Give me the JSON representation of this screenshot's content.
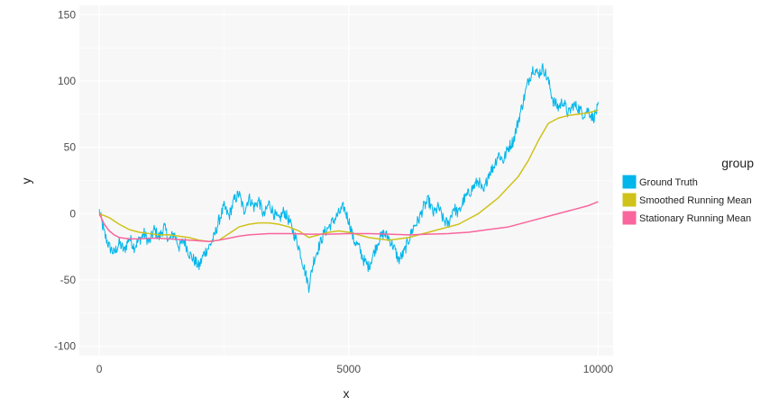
{
  "chart_data": {
    "type": "line",
    "title": "",
    "xlabel": "x",
    "ylabel": "y",
    "xlim": [
      -400,
      10300
    ],
    "ylim": [
      -107,
      157
    ],
    "x_ticks": [
      0,
      5000,
      10000
    ],
    "y_ticks": [
      -100,
      -50,
      0,
      50,
      100,
      150
    ],
    "x_tick_labels": [
      "0",
      "5000",
      "10000"
    ],
    "y_tick_labels": [
      "-100",
      "-50",
      "0",
      "50",
      "100",
      "150"
    ],
    "grid": true,
    "legend": {
      "title": "group",
      "position": "right"
    },
    "series": [
      {
        "name": "Ground Truth",
        "color": "#00B6EB",
        "x": [
          0,
          100,
          200,
          300,
          400,
          500,
          600,
          700,
          800,
          900,
          1000,
          1100,
          1200,
          1300,
          1400,
          1500,
          1600,
          1700,
          1800,
          1900,
          2000,
          2100,
          2200,
          2300,
          2400,
          2500,
          2600,
          2700,
          2800,
          2900,
          3000,
          3100,
          3200,
          3300,
          3400,
          3500,
          3600,
          3700,
          3800,
          3900,
          4000,
          4100,
          4200,
          4300,
          4400,
          4500,
          4600,
          4700,
          4800,
          4900,
          5000,
          5100,
          5200,
          5300,
          5400,
          5500,
          5600,
          5700,
          5800,
          5900,
          6000,
          6100,
          6200,
          6300,
          6400,
          6500,
          6600,
          6700,
          6800,
          6900,
          7000,
          7100,
          7200,
          7300,
          7400,
          7500,
          7600,
          7700,
          7800,
          7900,
          8000,
          8100,
          8200,
          8300,
          8400,
          8500,
          8600,
          8700,
          8800,
          8900,
          9000,
          9100,
          9200,
          9300,
          9400,
          9500,
          9600,
          9700,
          9800,
          9900,
          10000
        ],
        "y": [
          2,
          -15,
          -25,
          -30,
          -22,
          -28,
          -18,
          -25,
          -20,
          -15,
          -22,
          -12,
          -18,
          -10,
          -20,
          -15,
          -25,
          -20,
          -30,
          -35,
          -40,
          -30,
          -25,
          -18,
          -5,
          5,
          -2,
          10,
          15,
          2,
          12,
          5,
          10,
          -2,
          8,
          0,
          -5,
          2,
          -5,
          -15,
          -25,
          -40,
          -55,
          -35,
          -25,
          -15,
          -10,
          -5,
          0,
          5,
          -5,
          -20,
          -25,
          -35,
          -40,
          -30,
          -20,
          -15,
          -18,
          -25,
          -35,
          -30,
          -20,
          -10,
          -5,
          5,
          10,
          0,
          5,
          -5,
          -8,
          5,
          0,
          10,
          15,
          20,
          25,
          15,
          30,
          35,
          45,
          40,
          50,
          55,
          70,
          85,
          100,
          110,
          105,
          110,
          100,
          85,
          80,
          85,
          75,
          82,
          80,
          75,
          78,
          72,
          80
        ]
      },
      {
        "name": "Smoothed Running Mean",
        "color": "#CFC21A",
        "x": [
          0,
          200,
          400,
          600,
          800,
          1000,
          1200,
          1400,
          1600,
          1800,
          2000,
          2200,
          2400,
          2600,
          2800,
          3000,
          3200,
          3400,
          3600,
          3800,
          4000,
          4200,
          4400,
          4600,
          4800,
          5000,
          5200,
          5400,
          5600,
          5800,
          6000,
          6200,
          6400,
          6600,
          6800,
          7000,
          7200,
          7400,
          7600,
          7800,
          8000,
          8200,
          8400,
          8600,
          8800,
          9000,
          9200,
          9400,
          9600,
          9800,
          10000
        ],
        "y": [
          0,
          -3,
          -8,
          -12,
          -14,
          -15,
          -16,
          -16,
          -17,
          -18,
          -20,
          -21,
          -20,
          -15,
          -10,
          -8,
          -7,
          -7,
          -8,
          -10,
          -13,
          -18,
          -16,
          -14,
          -13,
          -14,
          -16,
          -18,
          -19,
          -20,
          -19,
          -18,
          -16,
          -14,
          -12,
          -10,
          -8,
          -4,
          0,
          6,
          12,
          20,
          28,
          40,
          55,
          68,
          72,
          74,
          75,
          76,
          78
        ]
      },
      {
        "name": "Stationary Running Mean",
        "color": "#F8669D",
        "x": [
          0,
          100,
          200,
          300,
          400,
          600,
          800,
          1000,
          1200,
          1400,
          1600,
          1800,
          2000,
          2200,
          2400,
          2600,
          2800,
          3000,
          3400,
          3800,
          4200,
          4600,
          5000,
          5400,
          5800,
          6200,
          6600,
          7000,
          7400,
          7800,
          8200,
          8600,
          9000,
          9400,
          9800,
          10000
        ],
        "y": [
          0,
          -8,
          -13,
          -16,
          -18,
          -19,
          -19,
          -18.5,
          -18.5,
          -19,
          -19.5,
          -20,
          -20.5,
          -21,
          -20,
          -18.5,
          -17,
          -16,
          -15,
          -15,
          -15.5,
          -15.5,
          -15,
          -15,
          -15.5,
          -16,
          -15.5,
          -15,
          -14,
          -12,
          -10,
          -6,
          -2,
          2,
          6,
          9
        ]
      }
    ]
  }
}
